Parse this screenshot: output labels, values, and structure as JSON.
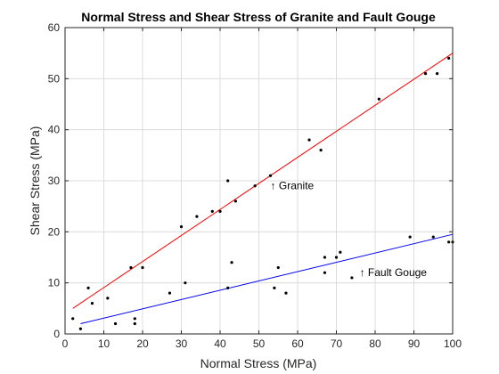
{
  "chart_data": {
    "type": "scatter",
    "title": "Normal Stress and Shear Stress of Granite and Fault Gouge",
    "xlabel": "Normal Stress (MPa)",
    "ylabel": "Shear Stress (MPa)",
    "xlim": [
      0,
      100
    ],
    "ylim": [
      0,
      60
    ],
    "xticks": [
      0,
      10,
      20,
      30,
      40,
      50,
      60,
      70,
      80,
      90,
      100
    ],
    "yticks": [
      0,
      10,
      20,
      30,
      40,
      50,
      60
    ],
    "grid": true,
    "legend": "none",
    "series": [
      {
        "color": "#000000",
        "points": [
          [
            2,
            3
          ],
          [
            4,
            1
          ],
          [
            6,
            9
          ],
          [
            7,
            6
          ],
          [
            11,
            7
          ],
          [
            13,
            2
          ],
          [
            17,
            13
          ],
          [
            18,
            2
          ],
          [
            18,
            3
          ],
          [
            20,
            13
          ],
          [
            27,
            8
          ],
          [
            30,
            21
          ],
          [
            31,
            10
          ],
          [
            34,
            23
          ],
          [
            38,
            24
          ],
          [
            40,
            24
          ],
          [
            42,
            30
          ],
          [
            42,
            9
          ],
          [
            43,
            14
          ],
          [
            44,
            26
          ],
          [
            49,
            29
          ],
          [
            53,
            31
          ],
          [
            54,
            9
          ],
          [
            55,
            13
          ],
          [
            57,
            8
          ],
          [
            63,
            38
          ],
          [
            66,
            36
          ],
          [
            67,
            15
          ],
          [
            67,
            12
          ],
          [
            70,
            15
          ],
          [
            71,
            16
          ],
          [
            74,
            11
          ],
          [
            81,
            46
          ],
          [
            89,
            19
          ],
          [
            93,
            51
          ],
          [
            95,
            19
          ],
          [
            96,
            51
          ],
          [
            99,
            54
          ],
          [
            99,
            18
          ],
          [
            100,
            18
          ]
        ]
      }
    ],
    "fit_lines": [
      {
        "color": "#ff0000",
        "x": [
          2,
          100
        ],
        "y": [
          5,
          55
        ]
      },
      {
        "color": "#0000ff",
        "x": [
          4,
          100
        ],
        "y": [
          2,
          19.5
        ]
      }
    ],
    "annotations": [
      {
        "text": "↑ Granite",
        "x": 53,
        "y": 29
      },
      {
        "text": "↑ Fault Gouge",
        "x": 76,
        "y": 12
      }
    ]
  }
}
